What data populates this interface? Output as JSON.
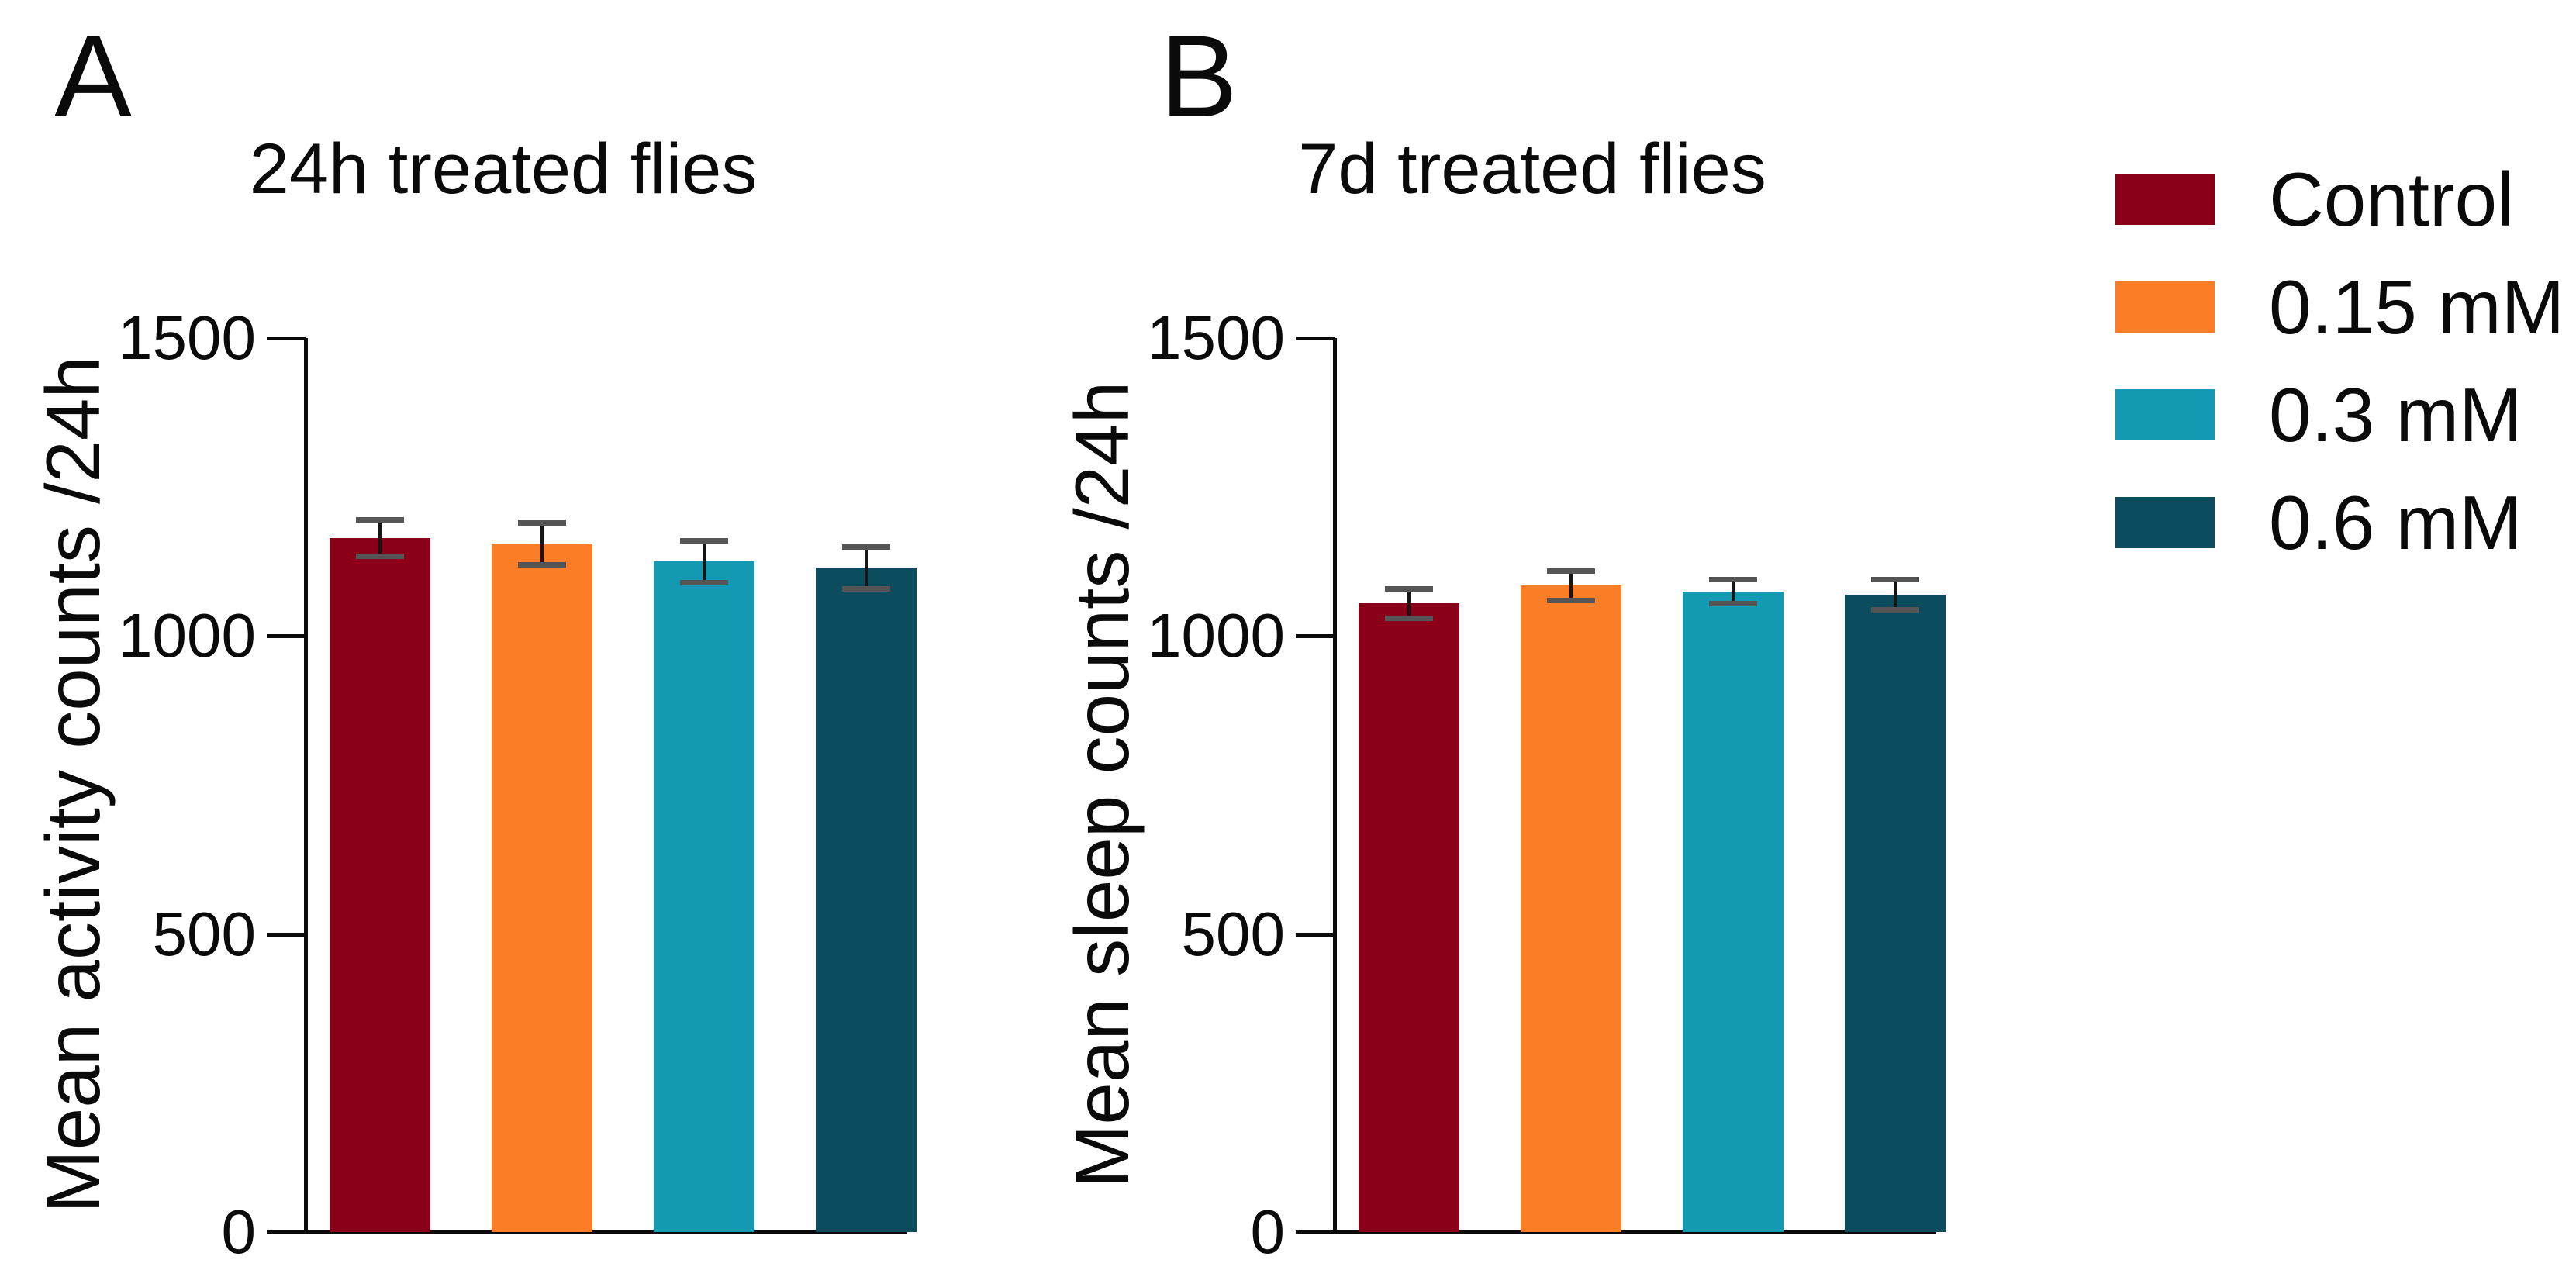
{
  "figure": {
    "panels": [
      {
        "letter": "A"
      },
      {
        "letter": "B"
      }
    ],
    "legend": {
      "position": "right",
      "entries": [
        {
          "label": "Control",
          "color": "#8B0019"
        },
        {
          "label": "0.15 mM",
          "color": "#FB7E26"
        },
        {
          "label": "0.3 mM",
          "color": "#1399B2"
        },
        {
          "label": "0.6 mM",
          "color": "#0B4D5F"
        }
      ]
    },
    "colors": {
      "axis": "#0A0A0A",
      "error_bar": "#161616",
      "background": "#FFFFFF"
    }
  },
  "chart_data": [
    {
      "type": "bar",
      "title": "24h treated flies",
      "xlabel": "",
      "ylabel": "Mean activity counts /24h",
      "categories": [
        "Control",
        "0.15 mM",
        "0.3 mM",
        "0.6 mM"
      ],
      "values": [
        1165,
        1155,
        1125,
        1115
      ],
      "errors": [
        30,
        35,
        35,
        35
      ],
      "bar_colors": [
        "#8B0019",
        "#FB7E26",
        "#1399B2",
        "#0B4D5F"
      ],
      "ylim": [
        0,
        1500
      ],
      "yticks": [
        0,
        500,
        1000,
        1500
      ],
      "grid": false,
      "error_bar_style": "symmetric with caps",
      "legend_position": "none (shared legend at figure right)"
    },
    {
      "type": "bar",
      "title": "7d treated flies",
      "xlabel": "",
      "ylabel": "Mean sleep counts /24h",
      "categories": [
        "Control",
        "0.15 mM",
        "0.3 mM",
        "0.6 mM"
      ],
      "values": [
        1055,
        1085,
        1075,
        1070
      ],
      "errors": [
        25,
        25,
        20,
        25
      ],
      "bar_colors": [
        "#8B0019",
        "#FB7E26",
        "#1399B2",
        "#0B4D5F"
      ],
      "ylim": [
        0,
        1500
      ],
      "yticks": [
        0,
        500,
        1000,
        1500
      ],
      "grid": false,
      "error_bar_style": "symmetric with caps",
      "legend_position": "none (shared legend at figure right)"
    }
  ]
}
